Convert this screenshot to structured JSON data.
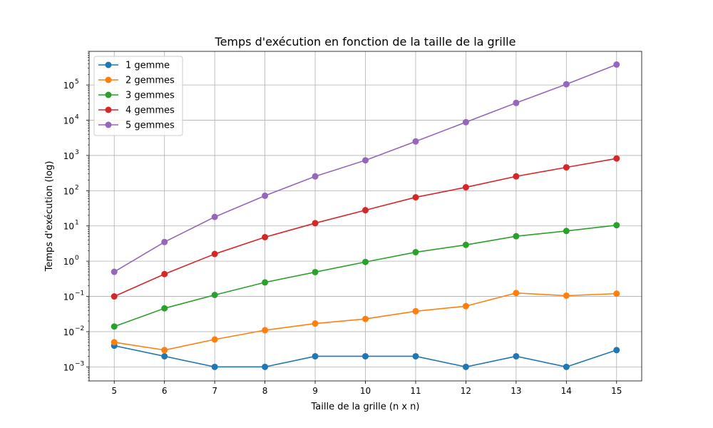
{
  "chart_data": {
    "type": "line",
    "title": "Temps d'exécution en fonction de la taille de la grille",
    "xlabel": "Taille de la grille (n x n)",
    "ylabel": "Temps d'exécution (log)",
    "x": [
      5,
      6,
      7,
      8,
      9,
      10,
      11,
      12,
      13,
      14,
      15
    ],
    "x_tick_labels": [
      "5",
      "6",
      "7",
      "8",
      "9",
      "10",
      "11",
      "12",
      "13",
      "14",
      "15"
    ],
    "xlim": [
      4.5,
      15.5
    ],
    "yscale": "log",
    "ylim": [
      0.0004,
      900000
    ],
    "y_ticks": [
      {
        "base": "10",
        "exp": "−3",
        "value": 0.001
      },
      {
        "base": "10",
        "exp": "−2",
        "value": 0.01
      },
      {
        "base": "10",
        "exp": "−1",
        "value": 0.1
      },
      {
        "base": "10",
        "exp": "0",
        "value": 1
      },
      {
        "base": "10",
        "exp": "1",
        "value": 10
      },
      {
        "base": "10",
        "exp": "2",
        "value": 100
      },
      {
        "base": "10",
        "exp": "3",
        "value": 1000
      },
      {
        "base": "10",
        "exp": "4",
        "value": 10000
      },
      {
        "base": "10",
        "exp": "5",
        "value": 100000
      }
    ],
    "grid": true,
    "legend_position": "top-left",
    "series": [
      {
        "name": "1 gemme",
        "color": "#1f77b4",
        "values": [
          0.004,
          0.002,
          0.001,
          0.001,
          0.002,
          0.002,
          0.002,
          0.001,
          0.002,
          0.001,
          0.003
        ]
      },
      {
        "name": "2 gemmes",
        "color": "#ff7f0e",
        "values": [
          0.005,
          0.003,
          0.006,
          0.011,
          0.017,
          0.023,
          0.038,
          0.053,
          0.125,
          0.105,
          0.12
        ]
      },
      {
        "name": "3 gemmes",
        "color": "#2ca02c",
        "values": [
          0.014,
          0.046,
          0.11,
          0.25,
          0.49,
          0.95,
          1.8,
          2.9,
          5.1,
          7.2,
          10.5
        ]
      },
      {
        "name": "4 gemmes",
        "color": "#d62728",
        "values": [
          0.1,
          0.43,
          1.6,
          4.8,
          12,
          28,
          65,
          125,
          255,
          460,
          820
        ]
      },
      {
        "name": "5 gemmes",
        "color": "#9467bd",
        "values": [
          0.5,
          3.5,
          18,
          72,
          255,
          730,
          2500,
          8800,
          31000,
          105000,
          380000
        ]
      }
    ]
  }
}
